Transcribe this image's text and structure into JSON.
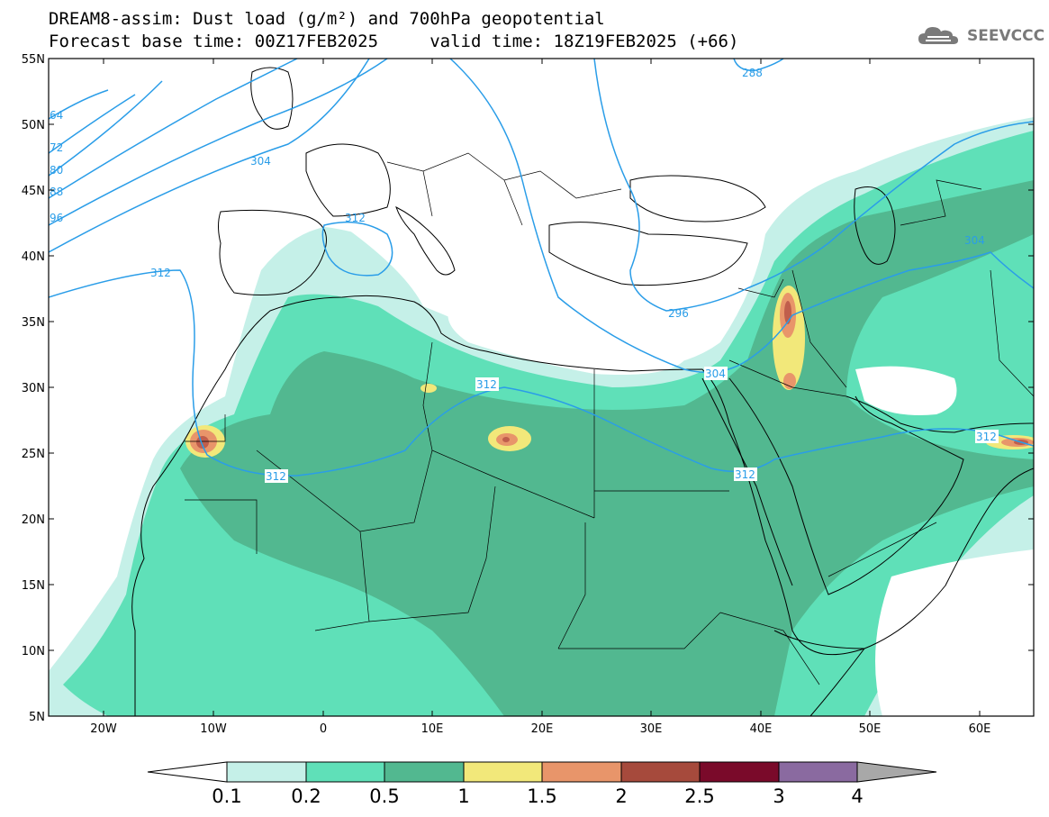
{
  "header": {
    "line1": "DREAM8-assim: Dust load (g/m²) and 700hPa geopotential",
    "line2": "Forecast base time: 00Z17FEB2025     valid time: 18Z19FEB2025 (+66)"
  },
  "logo": {
    "icon": "cloud-icon",
    "text": "SEEVCCC"
  },
  "map": {
    "lon_range": [
      -25,
      65
    ],
    "lat_range": [
      5,
      55
    ],
    "lat_ticks": [
      "55N",
      "50N",
      "45N",
      "40N",
      "35N",
      "30N",
      "25N",
      "20N",
      "15N",
      "10N",
      "5N"
    ],
    "lon_ticks": [
      "20W",
      "10W",
      "0",
      "10E",
      "20E",
      "30E",
      "40E",
      "50E",
      "60E"
    ],
    "contour_color": "#2a9de8",
    "contour_labels": [
      "64",
      "72",
      "80",
      "88",
      "96",
      "304",
      "312",
      "312",
      "312",
      "312",
      "312",
      "304",
      "296",
      "288",
      "304",
      "312"
    ]
  },
  "colorbar": {
    "labels": [
      "0.1",
      "0.2",
      "0.5",
      "1",
      "1.5",
      "2",
      "2.5",
      "3",
      "4"
    ],
    "colors": [
      "#c5f0e8",
      "#5fe0b8",
      "#52b890",
      "#f2e87a",
      "#e8956a",
      "#a64a3c",
      "#7a0a2a",
      "#8a6aa0",
      "#a8a8a8"
    ]
  }
}
